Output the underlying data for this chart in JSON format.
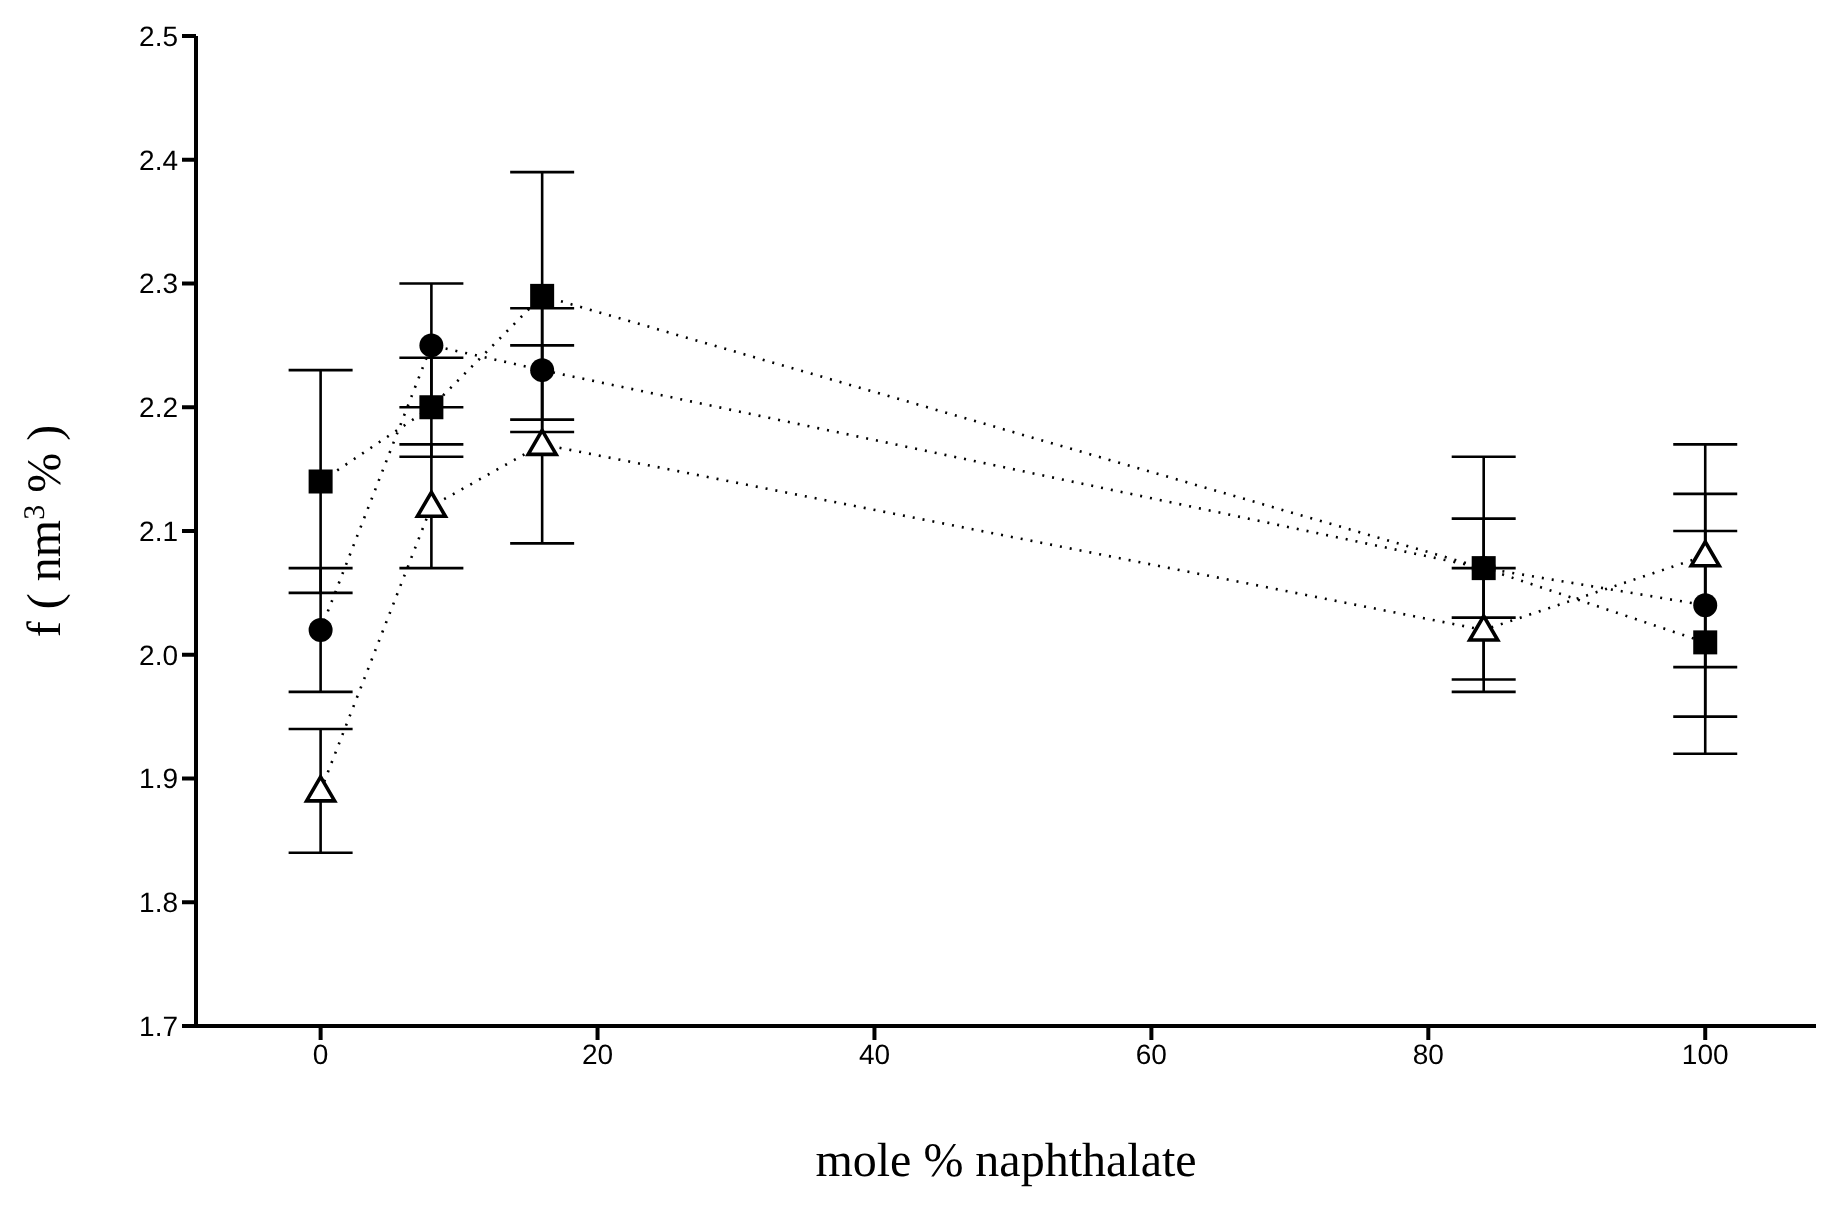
{
  "chart_data": {
    "type": "line",
    "xlabel": "mole % naphthalate",
    "ylabel": "f ( nm$^{3}$ % )",
    "x": [
      0,
      8,
      16,
      84,
      100
    ],
    "series": [
      {
        "color": "#000000",
        "marker": "circle",
        "values": [
          2.02,
          2.25,
          2.23,
          2.07,
          2.04
        ],
        "errors": [
          0.05,
          0.05,
          0.05,
          0.04,
          0.09
        ]
      },
      {
        "color": "#000000",
        "marker": "square",
        "values": [
          2.14,
          2.2,
          2.29,
          2.07,
          2.01
        ],
        "errors": [
          0.09,
          0.04,
          0.1,
          0.09,
          0.09
        ]
      },
      {
        "color": "#000000",
        "marker": "triangle",
        "values": [
          1.89,
          2.12,
          2.17,
          2.02,
          2.08
        ],
        "errors": [
          0.05,
          0.05,
          0.08,
          0.05,
          0.09
        ]
      }
    ],
    "line_style": "dotted",
    "xlim": [
      -9,
      108
    ],
    "ylim": [
      1.7,
      2.5
    ],
    "xticks": [
      0,
      20,
      40,
      60,
      80,
      100
    ],
    "yticks": [
      1.7,
      1.8,
      1.9,
      {
        "value": 2,
        "label": "2.0"
      },
      2.1,
      2.2,
      2.3,
      2.4,
      2.5
    ]
  }
}
